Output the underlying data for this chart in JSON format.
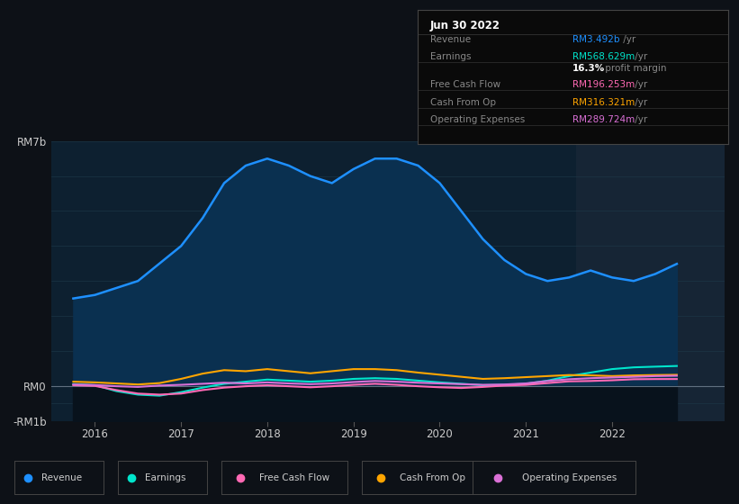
{
  "bg_color": "#0d1117",
  "plot_bg_color": "#0d2030",
  "highlight_bg": "#162535",
  "title": "Jun 30 2022",
  "info_box_rows": [
    {
      "label": "Revenue",
      "value": "RM3.492b",
      "suffix": " /yr",
      "color": "#1e90ff"
    },
    {
      "label": "Earnings",
      "value": "RM568.629m",
      "suffix": " /yr",
      "color": "#00e5cc"
    },
    {
      "label": "",
      "value": "16.3%",
      "suffix": " profit margin",
      "color": "#ffffff"
    },
    {
      "label": "Free Cash Flow",
      "value": "RM196.253m",
      "suffix": " /yr",
      "color": "#ff69b4"
    },
    {
      "label": "Cash From Op",
      "value": "RM316.321m",
      "suffix": " /yr",
      "color": "#ffa500"
    },
    {
      "label": "Operating Expenses",
      "value": "RM289.724m",
      "suffix": " /yr",
      "color": "#da70d6"
    }
  ],
  "ylim": [
    -1000000000.0,
    7000000000.0
  ],
  "xlim": [
    2015.5,
    2023.3
  ],
  "ytick_vals": [
    -1000000000.0,
    0,
    7000000000.0
  ],
  "ytick_labels": [
    "-RM1b",
    "RM0",
    "RM7b"
  ],
  "xtick_vals": [
    2016,
    2017,
    2018,
    2019,
    2020,
    2021,
    2022
  ],
  "grid_color": "#1e3a4a",
  "grid_y_vals": [
    -1000000000.0,
    -500000000.0,
    0,
    1000000000.0,
    2000000000.0,
    3000000000.0,
    4000000000.0,
    5000000000.0,
    6000000000.0,
    7000000000.0
  ],
  "highlight_x_start": 2021.58,
  "highlight_x_end": 2023.3,
  "revenue_color": "#1e90ff",
  "earnings_color": "#00e5cc",
  "fcf_color": "#ff69b4",
  "cashfromop_color": "#ffa500",
  "opex_color": "#da70d6",
  "revenue_fill": "#0a3050",
  "legend_items": [
    {
      "label": "Revenue",
      "color": "#1e90ff"
    },
    {
      "label": "Earnings",
      "color": "#00e5cc"
    },
    {
      "label": "Free Cash Flow",
      "color": "#ff69b4"
    },
    {
      "label": "Cash From Op",
      "color": "#ffa500"
    },
    {
      "label": "Operating Expenses",
      "color": "#da70d6"
    }
  ],
  "revenue_x": [
    2015.75,
    2016.0,
    2016.25,
    2016.5,
    2016.75,
    2017.0,
    2017.25,
    2017.5,
    2017.75,
    2018.0,
    2018.25,
    2018.5,
    2018.75,
    2019.0,
    2019.25,
    2019.5,
    2019.75,
    2020.0,
    2020.25,
    2020.5,
    2020.75,
    2021.0,
    2021.25,
    2021.5,
    2021.75,
    2022.0,
    2022.25,
    2022.5,
    2022.75
  ],
  "revenue_y": [
    2500000000.0,
    2600000000.0,
    2800000000.0,
    3000000000.0,
    3500000000.0,
    4000000000.0,
    4800000000.0,
    5800000000.0,
    6300000000.0,
    6500000000.0,
    6300000000.0,
    6000000000.0,
    5800000000.0,
    6200000000.0,
    6500000000.0,
    6500000000.0,
    6300000000.0,
    5800000000.0,
    5000000000.0,
    4200000000.0,
    3600000000.0,
    3200000000.0,
    3000000000.0,
    3100000000.0,
    3300000000.0,
    3100000000.0,
    3000000000.0,
    3200000000.0,
    3490000000.0
  ],
  "earnings_x": [
    2015.75,
    2016.0,
    2016.25,
    2016.5,
    2016.75,
    2017.0,
    2017.25,
    2017.5,
    2017.75,
    2018.0,
    2018.25,
    2018.5,
    2018.75,
    2019.0,
    2019.25,
    2019.5,
    2019.75,
    2020.0,
    2020.25,
    2020.5,
    2020.75,
    2021.0,
    2021.25,
    2021.5,
    2021.75,
    2022.0,
    2022.25,
    2022.5,
    2022.75
  ],
  "earnings_y": [
    50000000.0,
    20000000.0,
    -150000000.0,
    -250000000.0,
    -280000000.0,
    -180000000.0,
    -50000000.0,
    60000000.0,
    120000000.0,
    180000000.0,
    150000000.0,
    120000000.0,
    150000000.0,
    200000000.0,
    220000000.0,
    200000000.0,
    150000000.0,
    100000000.0,
    60000000.0,
    20000000.0,
    30000000.0,
    60000000.0,
    150000000.0,
    280000000.0,
    380000000.0,
    480000000.0,
    530000000.0,
    550000000.0,
    569000000.0
  ],
  "fcf_x": [
    2015.75,
    2016.0,
    2016.25,
    2016.5,
    2016.75,
    2017.0,
    2017.25,
    2017.5,
    2017.75,
    2018.0,
    2018.25,
    2018.5,
    2018.75,
    2019.0,
    2019.25,
    2019.5,
    2019.75,
    2020.0,
    2020.25,
    2020.5,
    2020.75,
    2021.0,
    2021.25,
    2021.5,
    2021.75,
    2022.0,
    2022.25,
    2022.5,
    2022.75
  ],
  "fcf_y": [
    20000000.0,
    0,
    -120000000.0,
    -220000000.0,
    -250000000.0,
    -220000000.0,
    -120000000.0,
    -50000000.0,
    -10000000.0,
    20000000.0,
    -10000000.0,
    -40000000.0,
    -10000000.0,
    30000000.0,
    60000000.0,
    30000000.0,
    -10000000.0,
    -40000000.0,
    -60000000.0,
    -30000000.0,
    10000000.0,
    30000000.0,
    80000000.0,
    130000000.0,
    140000000.0,
    160000000.0,
    190000000.0,
    195000000.0,
    196000000.0
  ],
  "cashfromop_x": [
    2015.75,
    2016.0,
    2016.25,
    2016.5,
    2016.75,
    2017.0,
    2017.25,
    2017.5,
    2017.75,
    2018.0,
    2018.25,
    2018.5,
    2018.75,
    2019.0,
    2019.25,
    2019.5,
    2019.75,
    2020.0,
    2020.25,
    2020.5,
    2020.75,
    2021.0,
    2021.25,
    2021.5,
    2021.75,
    2022.0,
    2022.25,
    2022.5,
    2022.75
  ],
  "cashfromop_y": [
    120000000.0,
    100000000.0,
    70000000.0,
    40000000.0,
    80000000.0,
    200000000.0,
    350000000.0,
    450000000.0,
    420000000.0,
    480000000.0,
    420000000.0,
    360000000.0,
    420000000.0,
    480000000.0,
    480000000.0,
    450000000.0,
    380000000.0,
    320000000.0,
    260000000.0,
    200000000.0,
    220000000.0,
    250000000.0,
    280000000.0,
    310000000.0,
    300000000.0,
    280000000.0,
    300000000.0,
    310000000.0,
    316000000.0
  ],
  "opex_x": [
    2015.75,
    2016.0,
    2016.25,
    2016.5,
    2016.75,
    2017.0,
    2017.25,
    2017.5,
    2017.75,
    2018.0,
    2018.25,
    2018.5,
    2018.75,
    2019.0,
    2019.25,
    2019.5,
    2019.75,
    2020.0,
    2020.25,
    2020.5,
    2020.75,
    2021.0,
    2021.25,
    2021.5,
    2021.75,
    2022.0,
    2022.25,
    2022.5,
    2022.75
  ],
  "opex_y": [
    40000000.0,
    25000000.0,
    -10000000.0,
    -30000000.0,
    10000000.0,
    30000000.0,
    60000000.0,
    90000000.0,
    70000000.0,
    100000000.0,
    70000000.0,
    50000000.0,
    70000000.0,
    110000000.0,
    140000000.0,
    120000000.0,
    90000000.0,
    70000000.0,
    50000000.0,
    30000000.0,
    40000000.0,
    70000000.0,
    140000000.0,
    190000000.0,
    220000000.0,
    240000000.0,
    260000000.0,
    280000000.0,
    290000000.0
  ]
}
